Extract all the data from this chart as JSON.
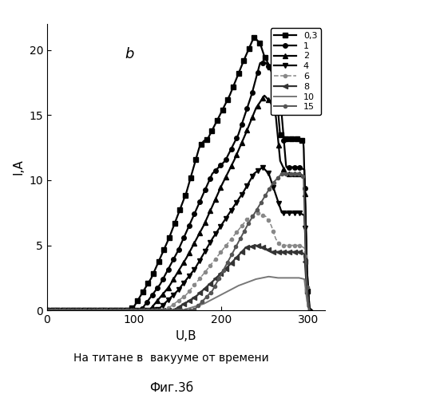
{
  "title_annotation": "b",
  "xlabel": "U,B",
  "ylabel": "I,A",
  "xlim": [
    0,
    320
  ],
  "ylim": [
    0,
    22
  ],
  "xticks": [
    0,
    100,
    200,
    300
  ],
  "yticks": [
    0,
    5,
    10,
    15,
    20
  ],
  "subtitle": "На титане в  вакууме от времени",
  "figure_caption": "Фиг.3б",
  "background_color": "#ffffff",
  "curves": [
    {
      "label": "0,3",
      "marker": "s",
      "linestyle": "-",
      "color": "#000000",
      "linewidth": 1.6,
      "markersize": 4,
      "markevery": 10,
      "pts": [
        [
          0,
          0
        ],
        [
          95,
          0
        ],
        [
          100,
          0.3
        ],
        [
          120,
          2.5
        ],
        [
          140,
          5.5
        ],
        [
          160,
          9.0
        ],
        [
          175,
          12.5
        ],
        [
          180,
          13.0
        ],
        [
          185,
          13.2
        ],
        [
          195,
          14.5
        ],
        [
          210,
          16.5
        ],
        [
          225,
          19.0
        ],
        [
          238,
          21.0
        ],
        [
          245,
          20.5
        ],
        [
          250,
          19.5
        ],
        [
          258,
          18.5
        ],
        [
          263,
          17.5
        ],
        [
          268,
          13.5
        ],
        [
          275,
          13.2
        ],
        [
          280,
          13.2
        ],
        [
          285,
          13.2
        ],
        [
          290,
          13.2
        ],
        [
          295,
          13.0
        ],
        [
          298,
          5.0
        ],
        [
          300,
          0.3
        ],
        [
          305,
          0
        ]
      ]
    },
    {
      "label": "1",
      "marker": "o",
      "linestyle": "-",
      "color": "#000000",
      "linewidth": 1.6,
      "markersize": 4,
      "markevery": 10,
      "pts": [
        [
          0,
          0
        ],
        [
          105,
          0
        ],
        [
          110,
          0.2
        ],
        [
          130,
          2.0
        ],
        [
          150,
          4.5
        ],
        [
          170,
          7.5
        ],
        [
          190,
          10.5
        ],
        [
          205,
          11.5
        ],
        [
          220,
          13.5
        ],
        [
          235,
          16.5
        ],
        [
          245,
          19.0
        ],
        [
          252,
          19.0
        ],
        [
          257,
          18.5
        ],
        [
          263,
          17.5
        ],
        [
          268,
          16.5
        ],
        [
          275,
          11.0
        ],
        [
          280,
          11.0
        ],
        [
          285,
          11.0
        ],
        [
          290,
          11.0
        ],
        [
          296,
          10.8
        ],
        [
          299,
          3.0
        ],
        [
          302,
          0
        ]
      ]
    },
    {
      "label": "2",
      "marker": "^",
      "linestyle": "-",
      "color": "#000000",
      "linewidth": 1.6,
      "markersize": 4,
      "markevery": 10,
      "pts": [
        [
          0,
          0
        ],
        [
          115,
          0
        ],
        [
          120,
          0.2
        ],
        [
          140,
          1.8
        ],
        [
          160,
          4.0
        ],
        [
          180,
          6.5
        ],
        [
          200,
          9.5
        ],
        [
          215,
          11.5
        ],
        [
          228,
          13.5
        ],
        [
          240,
          15.5
        ],
        [
          250,
          16.5
        ],
        [
          257,
          16.0
        ],
        [
          263,
          15.0
        ],
        [
          268,
          11.5
        ],
        [
          275,
          10.5
        ],
        [
          280,
          10.5
        ],
        [
          285,
          10.5
        ],
        [
          290,
          10.5
        ],
        [
          296,
          10.3
        ],
        [
          299,
          3.0
        ],
        [
          302,
          0
        ]
      ]
    },
    {
      "label": "4",
      "marker": "v",
      "linestyle": "-",
      "color": "#000000",
      "linewidth": 1.6,
      "markersize": 4,
      "markevery": 10,
      "pts": [
        [
          0,
          0
        ],
        [
          125,
          0
        ],
        [
          130,
          0.2
        ],
        [
          150,
          1.5
        ],
        [
          170,
          3.2
        ],
        [
          190,
          5.5
        ],
        [
          210,
          7.5
        ],
        [
          225,
          9.0
        ],
        [
          238,
          10.5
        ],
        [
          248,
          11.0
        ],
        [
          255,
          10.5
        ],
        [
          260,
          9.5
        ],
        [
          265,
          8.5
        ],
        [
          270,
          7.5
        ],
        [
          275,
          7.5
        ],
        [
          280,
          7.5
        ],
        [
          285,
          7.5
        ],
        [
          290,
          7.5
        ],
        [
          296,
          7.3
        ],
        [
          299,
          2.0
        ],
        [
          302,
          0
        ]
      ]
    },
    {
      "label": "6",
      "marker": "o",
      "linestyle": "--",
      "color": "#888888",
      "linewidth": 1.1,
      "markersize": 3,
      "markevery": 10,
      "pts": [
        [
          0,
          0
        ],
        [
          135,
          0
        ],
        [
          140,
          0.2
        ],
        [
          160,
          1.2
        ],
        [
          180,
          2.8
        ],
        [
          200,
          4.5
        ],
        [
          218,
          6.0
        ],
        [
          230,
          7.0
        ],
        [
          242,
          7.5
        ],
        [
          252,
          7.2
        ],
        [
          258,
          6.5
        ],
        [
          263,
          5.5
        ],
        [
          268,
          5.0
        ],
        [
          273,
          5.0
        ],
        [
          278,
          5.0
        ],
        [
          283,
          5.0
        ],
        [
          290,
          5.0
        ],
        [
          296,
          4.8
        ],
        [
          299,
          1.5
        ],
        [
          302,
          0
        ]
      ]
    },
    {
      "label": "8",
      "marker": "<",
      "linestyle": "-",
      "color": "#333333",
      "linewidth": 1.6,
      "markersize": 4,
      "markevery": 10,
      "pts": [
        [
          0,
          0
        ],
        [
          145,
          0
        ],
        [
          150,
          0.2
        ],
        [
          170,
          1.0
        ],
        [
          190,
          2.2
        ],
        [
          210,
          3.5
        ],
        [
          228,
          4.8
        ],
        [
          240,
          5.0
        ],
        [
          250,
          4.8
        ],
        [
          258,
          4.5
        ],
        [
          265,
          4.5
        ],
        [
          270,
          4.5
        ],
        [
          278,
          4.5
        ],
        [
          285,
          4.5
        ],
        [
          292,
          4.5
        ],
        [
          296,
          4.3
        ],
        [
          299,
          1.2
        ],
        [
          302,
          0
        ]
      ]
    },
    {
      "label": "10",
      "marker": "None",
      "linestyle": "-",
      "color": "#777777",
      "linewidth": 1.4,
      "markersize": 0,
      "markevery": 0,
      "pts": [
        [
          0,
          0
        ],
        [
          155,
          0
        ],
        [
          160,
          0.1
        ],
        [
          180,
          0.5
        ],
        [
          200,
          1.2
        ],
        [
          220,
          1.9
        ],
        [
          240,
          2.4
        ],
        [
          255,
          2.6
        ],
        [
          265,
          2.5
        ],
        [
          275,
          2.5
        ],
        [
          283,
          2.5
        ],
        [
          290,
          2.5
        ],
        [
          296,
          2.4
        ],
        [
          299,
          0.7
        ],
        [
          302,
          0
        ]
      ]
    },
    {
      "label": "15",
      "marker": "o",
      "linestyle": "-",
      "color": "#555555",
      "linewidth": 1.4,
      "markersize": 3,
      "markevery": 8,
      "pts": [
        [
          0,
          0
        ],
        [
          165,
          0
        ],
        [
          170,
          0.1
        ],
        [
          190,
          1.5
        ],
        [
          210,
          4.0
        ],
        [
          230,
          6.5
        ],
        [
          248,
          8.5
        ],
        [
          260,
          9.8
        ],
        [
          270,
          10.5
        ],
        [
          278,
          10.5
        ],
        [
          285,
          10.5
        ],
        [
          290,
          10.5
        ],
        [
          295,
          10.3
        ],
        [
          298,
          3.0
        ],
        [
          301,
          0
        ]
      ]
    }
  ]
}
